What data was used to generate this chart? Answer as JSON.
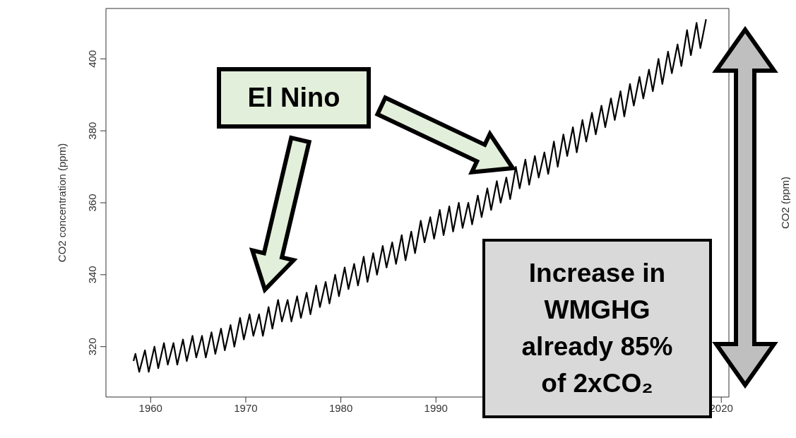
{
  "chart_data": {
    "type": "line",
    "ylabel": "CO2 concentration (ppm)",
    "y2label": "CO2 (ppm)",
    "annotations": [
      "El Nino",
      "Increase in WMGHG already 85% of 2xCO₂"
    ],
    "x": [
      1958.2,
      1958.4,
      1958.8,
      1959.4,
      1959.8,
      1960.4,
      1960.8,
      1961.4,
      1961.8,
      1962.4,
      1962.8,
      1963.4,
      1963.8,
      1964.4,
      1964.8,
      1965.4,
      1965.8,
      1966.4,
      1966.8,
      1967.4,
      1967.8,
      1968.4,
      1968.8,
      1969.4,
      1969.8,
      1970.4,
      1970.8,
      1971.4,
      1971.8,
      1972.4,
      1972.8,
      1973.4,
      1973.8,
      1974.4,
      1974.8,
      1975.4,
      1975.8,
      1976.4,
      1976.8,
      1977.4,
      1977.8,
      1978.4,
      1978.8,
      1979.4,
      1979.8,
      1980.4,
      1980.8,
      1981.4,
      1981.8,
      1982.4,
      1982.8,
      1983.4,
      1983.8,
      1984.4,
      1984.8,
      1985.4,
      1985.8,
      1986.4,
      1986.8,
      1987.4,
      1987.8,
      1988.4,
      1988.8,
      1989.4,
      1989.8,
      1990.4,
      1990.8,
      1991.4,
      1991.8,
      1992.4,
      1992.8,
      1993.4,
      1993.8,
      1994.4,
      1994.8,
      1995.4,
      1995.8,
      1996.4,
      1996.8,
      1997.4,
      1997.8,
      1998.4,
      1998.8,
      1999.4,
      1999.8,
      2000.4,
      2000.8,
      2001.4,
      2001.8,
      2002.4,
      2002.8,
      2003.4,
      2003.8,
      2004.4,
      2004.8,
      2005.4,
      2005.8,
      2006.4,
      2006.8,
      2007.4,
      2007.8,
      2008.4,
      2008.8,
      2009.4,
      2009.8,
      2010.4,
      2010.8,
      2011.4,
      2011.8,
      2012.4,
      2012.8,
      2013.4,
      2013.8,
      2014.4,
      2014.8,
      2015.4,
      2015.8,
      2016.4,
      2016.8,
      2017.4,
      2017.8,
      2018.4
    ],
    "values": [
      316,
      318,
      313,
      319,
      313,
      320,
      314,
      321,
      315,
      321,
      315,
      322,
      316,
      323,
      317,
      323,
      317,
      324,
      318,
      325,
      319,
      326,
      320,
      328,
      322,
      329,
      323,
      329,
      323,
      331,
      325,
      333,
      327,
      333,
      327,
      334,
      328,
      335,
      329,
      337,
      331,
      338,
      332,
      340,
      334,
      342,
      336,
      343,
      337,
      345,
      338,
      346,
      340,
      348,
      342,
      349,
      343,
      351,
      344,
      352,
      346,
      355,
      349,
      356,
      350,
      358,
      351,
      359,
      352,
      360,
      353,
      360,
      354,
      362,
      356,
      364,
      358,
      366,
      360,
      367,
      361,
      370,
      364,
      372,
      365,
      373,
      367,
      374,
      368,
      377,
      370,
      379,
      373,
      381,
      374,
      383,
      377,
      385,
      379,
      387,
      381,
      389,
      383,
      391,
      384,
      393,
      387,
      395,
      389,
      397,
      391,
      400,
      393,
      402,
      396,
      404,
      398,
      408,
      401,
      410,
      403,
      411
    ],
    "color": "#000000",
    "marker": "none",
    "line_style": "solid",
    "grid": false,
    "xlim": [
      1955.3,
      2020.8
    ],
    "xticks": [
      1960,
      1970,
      1980,
      1990,
      2020
    ],
    "ylim": [
      306,
      414
    ],
    "yticks": [
      320,
      340,
      360,
      380,
      400
    ]
  }
}
